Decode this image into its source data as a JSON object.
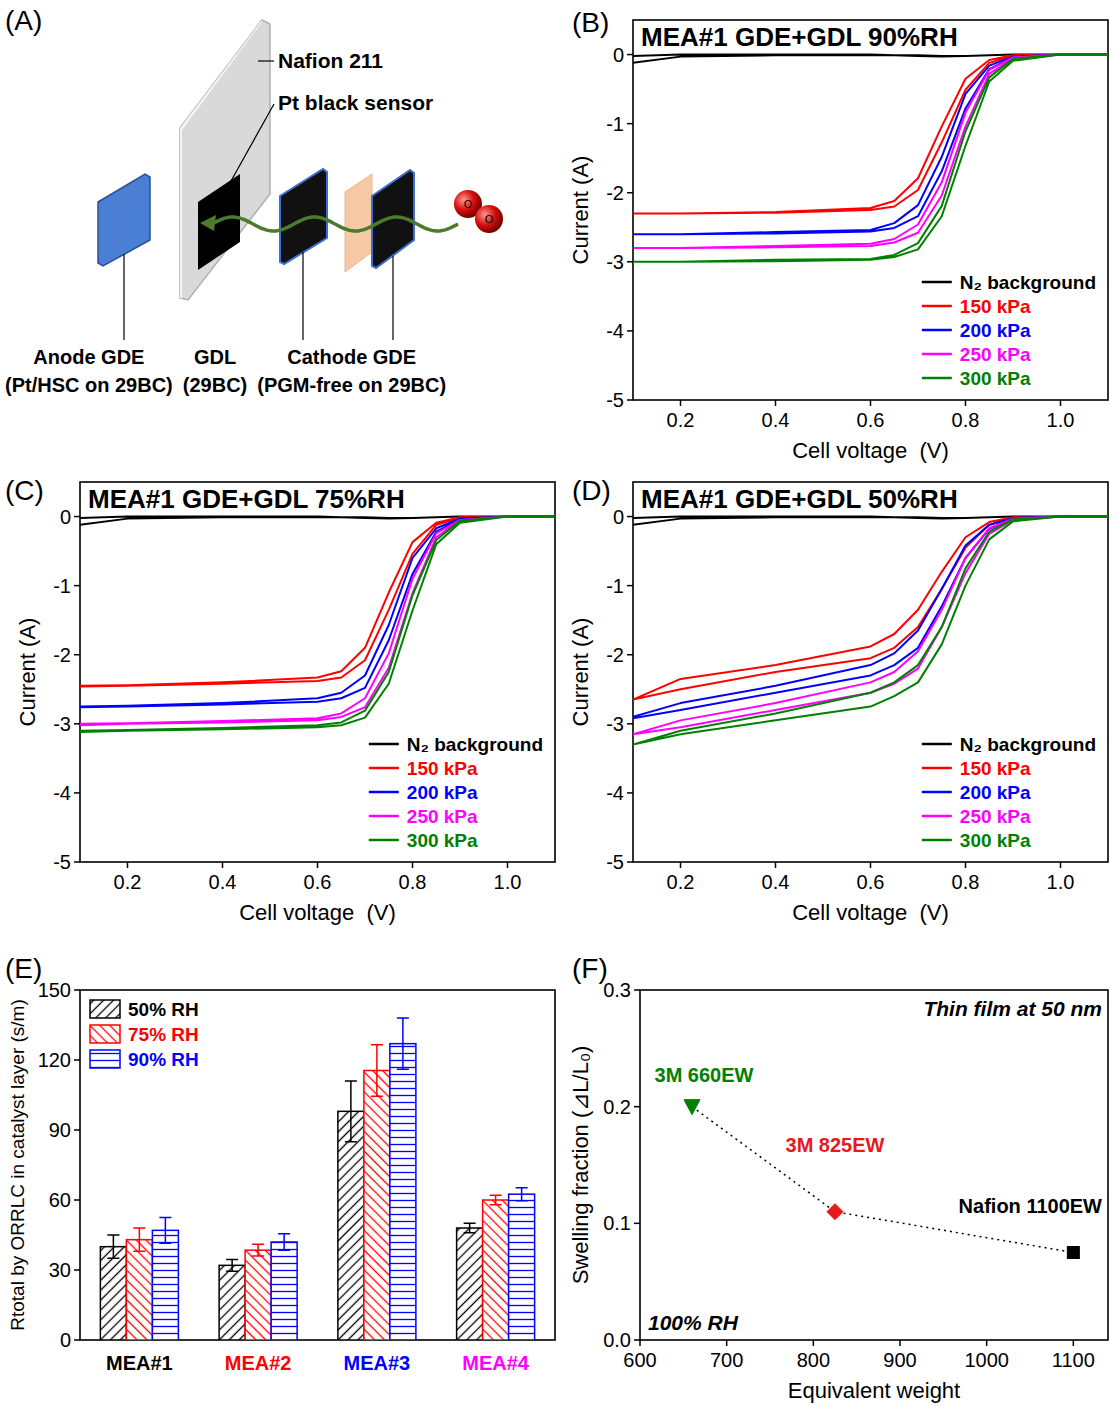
{
  "diagram": {
    "panel": "(A)",
    "membrane": "Nafion 211",
    "sensor": "Pt black sensor",
    "components": [
      {
        "name": "Anode GDE",
        "detail": "(Pt/HSC on 29BC)"
      },
      {
        "name": "GDL",
        "detail": "(29BC)"
      },
      {
        "name": "Cathode GDE",
        "detail": "(PGM-free on 29BC)"
      }
    ],
    "molecule_atoms": [
      "O",
      "O"
    ]
  },
  "chart_data": [
    {
      "type": "line",
      "panel": "(B)",
      "title": "MEA#1 GDE+GDL 90%RH",
      "x_label": "Cell voltage  (V)",
      "y_label": "Current (A)",
      "xlim": [
        0.1,
        1.1
      ],
      "ylim": [
        -5,
        0.5
      ],
      "xticks": [
        0.2,
        0.4,
        0.6,
        0.8,
        {
          "value": 1.0,
          "label": "1.0"
        }
      ],
      "yticks": [
        0,
        -1,
        -2,
        -3,
        -4,
        -5
      ],
      "legend": "bottom-right",
      "x": [
        0.1,
        0.2,
        0.4,
        0.6,
        0.65,
        0.7,
        0.75,
        0.8,
        0.85,
        0.9,
        1.0,
        1.1,
        1.1,
        1.0,
        0.9,
        0.85,
        0.8,
        0.75,
        0.7,
        0.65,
        0.6,
        0.4,
        0.2,
        0.1
      ],
      "series": [
        {
          "name": "N₂ background",
          "color": "#000000",
          "values": [
            -0.12,
            -0.03,
            -0.01,
            -0.01,
            -0.01,
            -0.02,
            -0.03,
            -0.02,
            -0.01,
            0,
            0,
            0,
            0,
            0,
            0,
            -0.01,
            -0.02,
            -0.02,
            -0.01,
            -0.01,
            0,
            0,
            0,
            -0.02
          ]
        },
        {
          "name": "150 kPa",
          "color": "#ff0000",
          "values": [
            -2.3,
            -2.3,
            -2.28,
            -2.22,
            -2.12,
            -1.79,
            -1.04,
            -0.35,
            -0.08,
            -0.01,
            0,
            0,
            0,
            0,
            -0.02,
            -0.12,
            -0.51,
            -1.27,
            -1.96,
            -2.2,
            -2.25,
            -2.29,
            -2.3,
            -2.3
          ]
        },
        {
          "name": "200 kPa",
          "color": "#0000ff",
          "values": [
            -2.6,
            -2.6,
            -2.57,
            -2.54,
            -2.44,
            -2.18,
            -1.48,
            -0.57,
            -0.16,
            -0.03,
            0,
            0,
            0,
            0,
            -0.04,
            -0.21,
            -0.78,
            -1.69,
            -2.34,
            -2.51,
            -2.56,
            -2.59,
            -2.6,
            -2.6
          ]
        },
        {
          "name": "250 kPa",
          "color": "#ff00ff",
          "values": [
            -2.8,
            -2.8,
            -2.77,
            -2.74,
            -2.67,
            -2.46,
            -1.85,
            -0.84,
            -0.22,
            -0.04,
            0,
            0,
            0,
            0,
            -0.06,
            -0.28,
            -1.04,
            -2.04,
            -2.58,
            -2.72,
            -2.77,
            -2.79,
            -2.8,
            -2.8
          ]
        },
        {
          "name": "300 kPa",
          "color": "#008000",
          "values": [
            -3,
            -3,
            -2.97,
            -2.96,
            -2.9,
            -2.73,
            -2.19,
            -1.11,
            -0.33,
            -0.06,
            0,
            0,
            0,
            0,
            -0.09,
            -0.39,
            -1.32,
            -2.34,
            -2.82,
            -2.93,
            -2.97,
            -2.99,
            -3,
            -3
          ]
        }
      ]
    },
    {
      "type": "line",
      "panel": "(C)",
      "title": "MEA#1 GDE+GDL 75%RH",
      "x_label": "Cell voltage  (V)",
      "y_label": "Current (A)",
      "xlim": [
        0.1,
        1.1
      ],
      "ylim": [
        -5,
        0.5
      ],
      "xticks": [
        0.2,
        0.4,
        0.6,
        0.8,
        {
          "value": 1.0,
          "label": "1.0"
        }
      ],
      "yticks": [
        0,
        -1,
        -2,
        -3,
        -4,
        -5
      ],
      "legend": "bottom-right",
      "x": [
        0.1,
        0.2,
        0.4,
        0.6,
        0.65,
        0.7,
        0.75,
        0.8,
        0.85,
        0.9,
        1.0,
        1.1,
        1.1,
        1.0,
        0.9,
        0.85,
        0.8,
        0.75,
        0.7,
        0.65,
        0.6,
        0.4,
        0.2,
        0.1
      ],
      "series": [
        {
          "name": "N₂ background",
          "color": "#000000",
          "values": [
            -0.12,
            -0.03,
            -0.01,
            -0.01,
            -0.01,
            -0.02,
            -0.03,
            -0.02,
            -0.01,
            0,
            0,
            0,
            0,
            0,
            0,
            -0.01,
            -0.02,
            -0.02,
            -0.01,
            -0.01,
            0,
            0,
            0,
            -0.02
          ]
        },
        {
          "name": "150 kPa",
          "color": "#ff0000",
          "values": [
            -2.45,
            -2.44,
            -2.4,
            -2.33,
            -2.24,
            -1.9,
            -1.1,
            -0.37,
            -0.09,
            -0.01,
            0,
            0,
            0,
            0,
            -0.02,
            -0.12,
            -0.54,
            -1.35,
            -2.08,
            -2.33,
            -2.38,
            -2.42,
            -2.45,
            -2.46
          ]
        },
        {
          "name": "200 kPa",
          "color": "#0000ff",
          "values": [
            -2.75,
            -2.74,
            -2.7,
            -2.63,
            -2.55,
            -2.3,
            -1.57,
            -0.6,
            -0.17,
            -0.03,
            0,
            0,
            0,
            0,
            -0.04,
            -0.22,
            -0.83,
            -1.79,
            -2.48,
            -2.63,
            -2.68,
            -2.72,
            -2.75,
            -2.76
          ]
        },
        {
          "name": "250 kPa",
          "color": "#ff00ff",
          "values": [
            -3,
            -2.99,
            -2.96,
            -2.92,
            -2.85,
            -2.63,
            -1.98,
            -0.9,
            -0.24,
            -0.05,
            0,
            0,
            0,
            0,
            -0.06,
            -0.3,
            -1.11,
            -2.19,
            -2.76,
            -2.9,
            -2.95,
            -2.98,
            -3,
            -3.02
          ]
        },
        {
          "name": "300 kPa",
          "color": "#008000",
          "values": [
            -3.1,
            -3.09,
            -3.06,
            -3.02,
            -2.98,
            -2.81,
            -2.25,
            -1.14,
            -0.34,
            -0.06,
            0,
            0,
            0,
            0,
            -0.09,
            -0.4,
            -1.36,
            -2.42,
            -2.91,
            -3.02,
            -3.05,
            -3.08,
            -3.1,
            -3.12
          ]
        }
      ]
    },
    {
      "type": "line",
      "panel": "(D)",
      "title": "MEA#1 GDE+GDL 50%RH",
      "x_label": "Cell voltage  (V)",
      "y_label": "Current (A)",
      "xlim": [
        0.1,
        1.1
      ],
      "ylim": [
        -5,
        0.5
      ],
      "xticks": [
        0.2,
        0.4,
        0.6,
        0.8,
        {
          "value": 1.0,
          "label": "1.0"
        }
      ],
      "yticks": [
        0,
        -1,
        -2,
        -3,
        -4,
        -5
      ],
      "legend": "bottom-right",
      "x": [
        0.1,
        0.2,
        0.4,
        0.6,
        0.65,
        0.7,
        0.75,
        0.8,
        0.85,
        0.9,
        1.0,
        1.1,
        1.1,
        1.0,
        0.9,
        0.85,
        0.8,
        0.75,
        0.7,
        0.65,
        0.6,
        0.4,
        0.2,
        0.1
      ],
      "series": [
        {
          "name": "N₂ background",
          "color": "#000000",
          "values": [
            -0.12,
            -0.03,
            -0.01,
            -0.01,
            -0.01,
            -0.02,
            -0.03,
            -0.02,
            -0.01,
            0,
            0,
            0,
            0,
            0,
            0,
            -0.01,
            -0.02,
            -0.02,
            -0.01,
            -0.01,
            0,
            0,
            0,
            -0.02
          ]
        },
        {
          "name": "150 kPa",
          "color": "#ff0000",
          "values": [
            -2.65,
            -2.35,
            -2.15,
            -1.88,
            -1.7,
            -1.35,
            -0.8,
            -0.3,
            -0.08,
            -0.01,
            0,
            0,
            0,
            0,
            -0.02,
            -0.12,
            -0.45,
            -1.05,
            -1.6,
            -1.9,
            -2.05,
            -2.25,
            -2.5,
            -2.65
          ]
        },
        {
          "name": "200 kPa",
          "color": "#0000ff",
          "values": [
            -2.9,
            -2.7,
            -2.45,
            -2.15,
            -1.98,
            -1.65,
            -1.05,
            -0.42,
            -0.12,
            -0.02,
            0,
            0,
            0,
            0,
            -0.03,
            -0.18,
            -0.6,
            -1.3,
            -1.9,
            -2.15,
            -2.3,
            -2.55,
            -2.8,
            -2.92
          ]
        },
        {
          "name": "250 kPa",
          "color": "#ff00ff",
          "values": [
            -3.15,
            -2.95,
            -2.7,
            -2.4,
            -2.25,
            -1.95,
            -1.35,
            -0.6,
            -0.17,
            -0.03,
            0,
            0,
            0,
            0,
            -0.05,
            -0.25,
            -0.82,
            -1.6,
            -2.2,
            -2.42,
            -2.55,
            -2.8,
            -3.05,
            -3.15
          ]
        },
        {
          "name": "300 kPa",
          "color": "#008000",
          "values": [
            -3.3,
            -3.1,
            -2.85,
            -2.55,
            -2.4,
            -2.15,
            -1.6,
            -0.75,
            -0.22,
            -0.04,
            0,
            0,
            0,
            0,
            -0.07,
            -0.33,
            -1,
            -1.85,
            -2.4,
            -2.6,
            -2.75,
            -2.95,
            -3.15,
            -3.3
          ]
        }
      ]
    },
    {
      "type": "bar",
      "panel": "(E)",
      "y_label": "Rtotal by ORRLC in catalyst layer (s/m)",
      "categories": [
        "MEA#1",
        "MEA#2",
        "MEA#3",
        "MEA#4"
      ],
      "ylim": [
        0,
        150
      ],
      "yticks": [
        0,
        30,
        60,
        90,
        120,
        150
      ],
      "legend": "top-left",
      "series": [
        {
          "name": "50% RH",
          "color": "#000000",
          "values": [
            40,
            32,
            98,
            48
          ],
          "errors": [
            5,
            2.5,
            13,
            2
          ]
        },
        {
          "name": "75% RH",
          "color": "#ff0000",
          "values": [
            43,
            38.5,
            115.5,
            60
          ],
          "errors": [
            5,
            2.5,
            11,
            2
          ]
        },
        {
          "name": "90% RH",
          "color": "#0000ff",
          "values": [
            47,
            42,
            127,
            62.5
          ],
          "errors": [
            5.5,
            3.5,
            11,
            2.8
          ]
        }
      ]
    },
    {
      "type": "scatter",
      "panel": "(F)",
      "x_label": "Equivalent weight",
      "y_label": "Swelling fraction (⊿L/L₀)",
      "xlim": [
        600,
        1140
      ],
      "ylim": [
        0,
        0.3
      ],
      "xticks": [
        600,
        700,
        800,
        900,
        1000,
        1100
      ],
      "yticks": [
        {
          "value": 0,
          "label": "0.0"
        },
        0.1,
        0.2,
        0.3
      ],
      "annotations": [
        "Thin film at 50 nm",
        "100% RH"
      ],
      "series": [
        {
          "type": "line",
          "line_style": "dotted",
          "color": "#000000",
          "x": [
            660,
            825,
            1100
          ],
          "values": [
            0.2,
            0.11,
            0.075
          ]
        },
        {
          "name": "3M 660EW",
          "color": "#008000",
          "marker": "triangle-down",
          "x": [
            660
          ],
          "values": [
            0.2
          ]
        },
        {
          "name": "3M 825EW",
          "color": "#e8191c",
          "marker": "diamond",
          "x": [
            825
          ],
          "values": [
            0.11
          ]
        },
        {
          "name": "Nafion 1100EW",
          "color": "#000000",
          "marker": "square",
          "x": [
            1100
          ],
          "values": [
            0.075
          ]
        }
      ]
    }
  ]
}
